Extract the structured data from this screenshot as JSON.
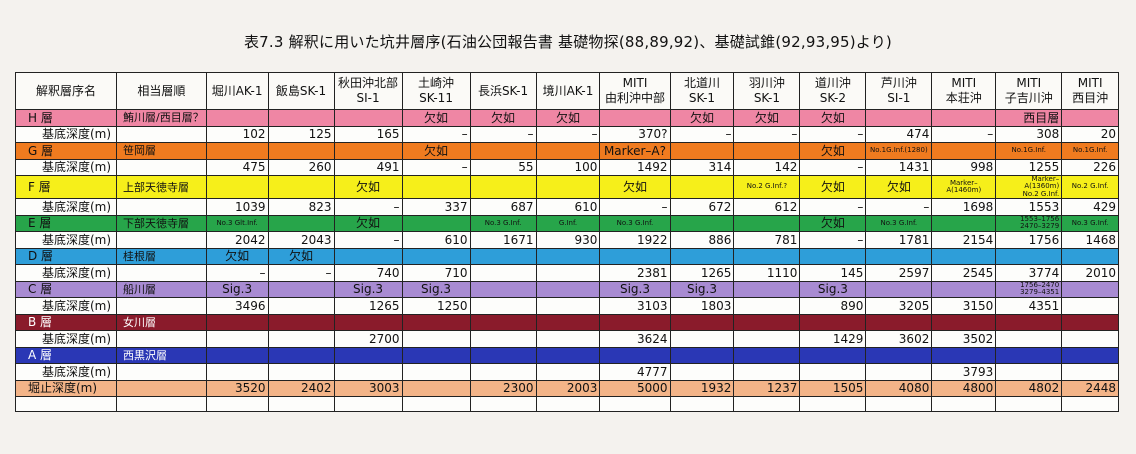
{
  "title": "表7.3 解釈に用いた坑井層序(石油公団報告書 基礎物探(88,89,92)、基礎試錐(92,93,95)より)",
  "headers": [
    "解釈層序名",
    "相当層順",
    "堀川AK-1",
    "飯島SK-1",
    "秋田沖北部\nSI-1",
    "土崎沖\nSK-11",
    "長浜SK-1",
    "境川AK-1",
    "MITI\n由利沖中部",
    "北道川\nSK-1",
    "羽川沖\nSK-1",
    "道川沖\nSK-2",
    "芦川沖\nSI-1",
    "MITI\n本荘沖",
    "MITI\n子吉川沖",
    "MITI\n西目沖"
  ],
  "layer_colors": {
    "H": "#ef86a4",
    "G": "#f07b1f",
    "F": "#f6ef1a",
    "E": "#27a54a",
    "D": "#2e9ed9",
    "C": "#a88bd2",
    "B": "#8a1b2b",
    "A": "#2a37b5",
    "total": "#f3b488"
  },
  "rows": [
    {
      "kind": "layer",
      "key": "H",
      "cells": [
        "H 層",
        "鮪川層/西目層？",
        "",
        "",
        "",
        "欠如",
        "欠如",
        "欠如",
        "",
        "欠如",
        "欠如",
        "欠如",
        "",
        "",
        "西目層",
        ""
      ]
    },
    {
      "kind": "depth",
      "cells": [
        "基底深度(m)",
        "",
        "102",
        "125",
        "165",
        "–",
        "–",
        "–",
        "370?",
        "–",
        "–",
        "–",
        "474",
        "–",
        "308",
        "20"
      ]
    },
    {
      "kind": "layer",
      "key": "G",
      "cells": [
        "G 層",
        "笹岡層",
        "",
        "",
        "",
        "欠如",
        "",
        "",
        "Marker–A?",
        "",
        "",
        "欠如",
        "No.1G.Inf.(1280)",
        "",
        "No.1G.Inf.",
        "No.1G.Inf."
      ]
    },
    {
      "kind": "depth",
      "cells": [
        "基底深度(m)",
        "",
        "475",
        "260",
        "491",
        "–",
        "55",
        "100",
        "1492",
        "314",
        "142",
        "–",
        "1431",
        "998",
        "1255",
        "226"
      ]
    },
    {
      "kind": "layer",
      "key": "F",
      "cells": [
        "F 層",
        "上部天徳寺層",
        "",
        "",
        "欠如",
        "",
        "",
        "",
        "欠如",
        "",
        "No.2 G.Inf.?",
        "欠如",
        "欠如",
        "Marker–A(1460m)",
        "Marker–A(1360m)\nNo.2 G.Inf.",
        "No.2 G.Inf."
      ]
    },
    {
      "kind": "depth",
      "cells": [
        "基底深度(m)",
        "",
        "1039",
        "823",
        "–",
        "337",
        "687",
        "610",
        "–",
        "672",
        "612",
        "–",
        "–",
        "1698",
        "1553",
        "429"
      ]
    },
    {
      "kind": "layer",
      "key": "E",
      "cells": [
        "E 層",
        "下部天徳寺層",
        "No.3 Glt.Inf.",
        "",
        "欠如",
        "",
        "No.3 G.Inf.",
        "G.Inf.",
        "No.3 G.Inf.",
        "",
        "",
        "欠如",
        "No.3 G.Inf.",
        "",
        "1553–1756\n2470–3279",
        "No.3 G.Inf."
      ]
    },
    {
      "kind": "depth",
      "cells": [
        "基底深度(m)",
        "",
        "2042",
        "2043",
        "–",
        "610",
        "1671",
        "930",
        "1922",
        "886",
        "781",
        "–",
        "1781",
        "2154",
        "1756",
        "1468"
      ]
    },
    {
      "kind": "layer",
      "key": "D",
      "cells": [
        "D 層",
        "桂根層",
        "欠如",
        "欠如",
        "",
        "",
        "",
        "",
        "",
        "",
        "",
        "",
        "",
        "",
        "",
        ""
      ]
    },
    {
      "kind": "depth",
      "cells": [
        "基底深度(m)",
        "",
        "–",
        "–",
        "740",
        "710",
        "",
        "",
        "2381",
        "1265",
        "1110",
        "145",
        "2597",
        "2545",
        "3774",
        "2010"
      ]
    },
    {
      "kind": "layer",
      "key": "C",
      "cells": [
        "C 層",
        "船川層",
        "Sig.3",
        "",
        "Sig.3",
        "Sig.3",
        "",
        "",
        "Sig.3",
        "Sig.3",
        "",
        "Sig.3",
        "",
        "",
        "1756–2470\n3279–4351",
        ""
      ]
    },
    {
      "kind": "depth",
      "cells": [
        "基底深度(m)",
        "",
        "3496",
        "",
        "1265",
        "1250",
        "",
        "",
        "3103",
        "1803",
        "",
        "890",
        "3205",
        "3150",
        "4351",
        ""
      ]
    },
    {
      "kind": "layer",
      "key": "B",
      "cells": [
        "B 層",
        "女川層",
        "",
        "",
        "",
        "",
        "",
        "",
        "",
        "",
        "",
        "",
        "",
        "",
        "",
        ""
      ]
    },
    {
      "kind": "depth",
      "cells": [
        "基底深度(m)",
        "",
        "",
        "",
        "2700",
        "",
        "",
        "",
        "3624",
        "",
        "",
        "1429",
        "3602",
        "3502",
        "",
        ""
      ]
    },
    {
      "kind": "layer",
      "key": "A",
      "cells": [
        "A 層",
        "西黒沢層",
        "",
        "",
        "",
        "",
        "",
        "",
        "",
        "",
        "",
        "",
        "",
        "",
        "",
        ""
      ]
    },
    {
      "kind": "depth",
      "cells": [
        "基底深度(m)",
        "",
        "",
        "",
        "",
        "",
        "",
        "",
        "4777",
        "",
        "",
        "",
        "",
        "3793",
        "",
        ""
      ]
    },
    {
      "kind": "total",
      "key": "total",
      "cells": [
        "堀止深度(m)",
        "",
        "3520",
        "2402",
        "3003",
        "",
        "2300",
        "2003",
        "5000",
        "1932",
        "1237",
        "1505",
        "4080",
        "4800",
        "4802",
        "2448"
      ]
    },
    {
      "kind": "blank",
      "cells": [
        "",
        "",
        "",
        "",
        "",
        "",
        "",
        "",
        "",
        "",
        "",
        "",
        "",
        "",
        "",
        ""
      ]
    }
  ]
}
